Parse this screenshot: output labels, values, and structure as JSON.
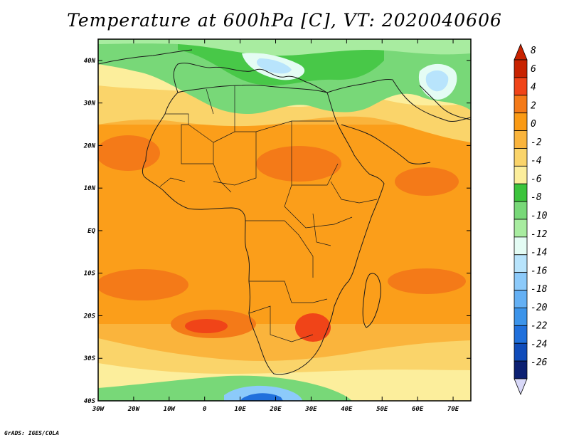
{
  "title": "Temperature at 600hPa [C], VT: 2020040606",
  "credit": "GrADS: IGES/COLA",
  "map": {
    "lon_range": [
      -30,
      75
    ],
    "lat_range": [
      -40,
      45
    ],
    "lon_ticks": [
      "30W",
      "20W",
      "10W",
      "0",
      "10E",
      "20E",
      "30E",
      "40E",
      "50E",
      "60E",
      "70E"
    ],
    "lat_ticks": [
      "40N",
      "30N",
      "20N",
      "10N",
      "EQ",
      "10S",
      "20S",
      "30S",
      "40S"
    ]
  },
  "colorbar": {
    "labels": [
      "8",
      "6",
      "4",
      "2",
      "0",
      "-2",
      "-4",
      "-6",
      "-8",
      "-10",
      "-12",
      "-14",
      "-16",
      "-18",
      "-20",
      "-22",
      "-24",
      "-26"
    ],
    "colors": [
      "#c82200",
      "#f04418",
      "#f47a18",
      "#fa9a14",
      "#fab43c",
      "#fad46a",
      "#fcee9c",
      "#3cc43c",
      "#78d878",
      "#a8eca0",
      "#e4fcf4",
      "#b8e4fc",
      "#8ccafa",
      "#64b0f4",
      "#3c94ea",
      "#2070dc",
      "#104cba",
      "#0c2072"
    ]
  }
}
